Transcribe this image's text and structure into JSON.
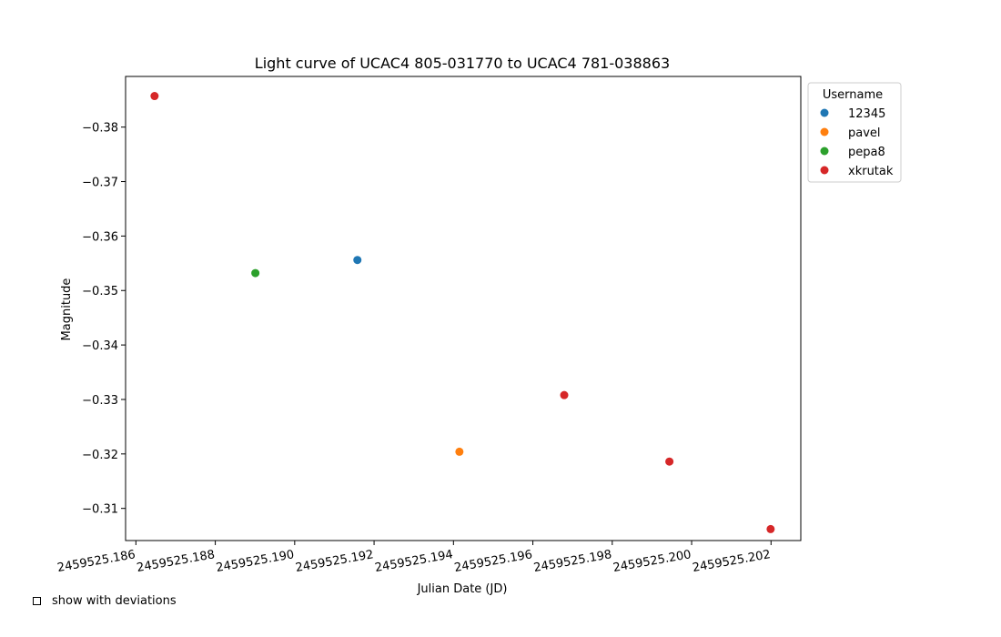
{
  "chart_data": {
    "type": "scatter",
    "title": "Light curve of UCAC4 805-031770 to UCAC4 781-038863",
    "xlabel": "Julian Date (JD)",
    "ylabel": "Magnitude",
    "xlim": [
      2459525.18574,
      2459525.20275
    ],
    "ylim": [
      -0.3893,
      -0.3041
    ],
    "y_inverted": true,
    "x_ticks": [
      2459525.186,
      2459525.188,
      2459525.19,
      2459525.192,
      2459525.194,
      2459525.196,
      2459525.198,
      2459525.2,
      2459525.202
    ],
    "x_tick_labels": [
      "2459525.186",
      "2459525.188",
      "2459525.190",
      "2459525.192",
      "2459525.194",
      "2459525.196",
      "2459525.198",
      "2459525.200",
      "2459525.202"
    ],
    "y_ticks": [
      -0.38,
      -0.37,
      -0.36,
      -0.35,
      -0.34,
      -0.33,
      -0.32,
      -0.31
    ],
    "y_tick_labels": [
      "−0.38",
      "−0.37",
      "−0.36",
      "−0.35",
      "−0.34",
      "−0.33",
      "−0.32",
      "−0.31"
    ],
    "grid": false,
    "legend": {
      "title": "Username",
      "position": "outside-top-right"
    },
    "series": [
      {
        "name": "12345",
        "color": "#1f77b4",
        "points": [
          {
            "x": 2459525.19158,
            "y": -0.3556
          }
        ]
      },
      {
        "name": "pavel",
        "color": "#ff7f0e",
        "points": [
          {
            "x": 2459525.19415,
            "y": -0.3204
          }
        ]
      },
      {
        "name": "pepa8",
        "color": "#2ca02c",
        "points": [
          {
            "x": 2459525.18901,
            "y": -0.3532
          }
        ]
      },
      {
        "name": "xkrutak",
        "color": "#d62728",
        "points": [
          {
            "x": 2459525.18647,
            "y": -0.3857
          },
          {
            "x": 2459525.19679,
            "y": -0.3308
          },
          {
            "x": 2459525.19944,
            "y": -0.3186
          },
          {
            "x": 2459525.20199,
            "y": -0.3062
          }
        ]
      }
    ]
  },
  "controls": {
    "deviations_label": "show with deviations"
  }
}
